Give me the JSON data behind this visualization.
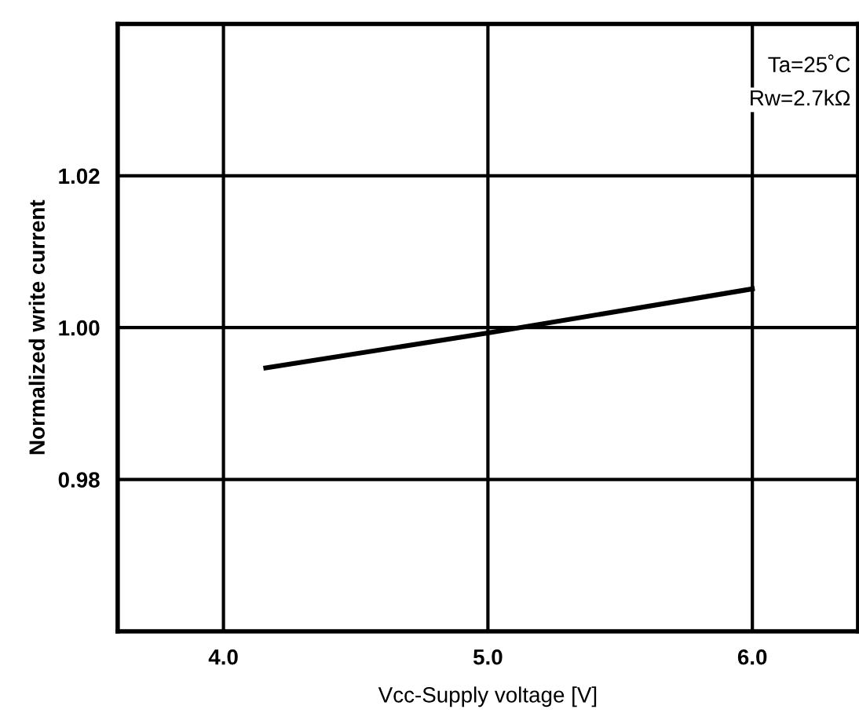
{
  "chart_data": {
    "type": "line",
    "xlabel": "Vcc-Supply voltage [V]",
    "ylabel": "Normalized write current",
    "x": [
      4.16,
      5.0,
      6.0
    ],
    "series": [
      {
        "color": "#000000",
        "values": [
          0.9947,
          0.9993,
          1.0051
        ]
      }
    ],
    "xlim": [
      3.6,
      6.4
    ],
    "xticks": [
      {
        "value": 4.0,
        "label": "4.0"
      },
      {
        "value": 5.0,
        "label": "5.0"
      },
      {
        "value": 6.0,
        "label": "6.0"
      }
    ],
    "ylim": [
      0.96,
      1.04
    ],
    "yticks": [
      {
        "value": 0.98,
        "label": "0.98"
      },
      {
        "value": 1.0,
        "label": "1.00"
      },
      {
        "value": 1.02,
        "label": "1.02"
      }
    ],
    "grid": true,
    "legend": false,
    "marker": "none",
    "line_style": "solid",
    "annotations": [
      "Ta=25˚C",
      "Rw=2.7kΩ"
    ]
  }
}
